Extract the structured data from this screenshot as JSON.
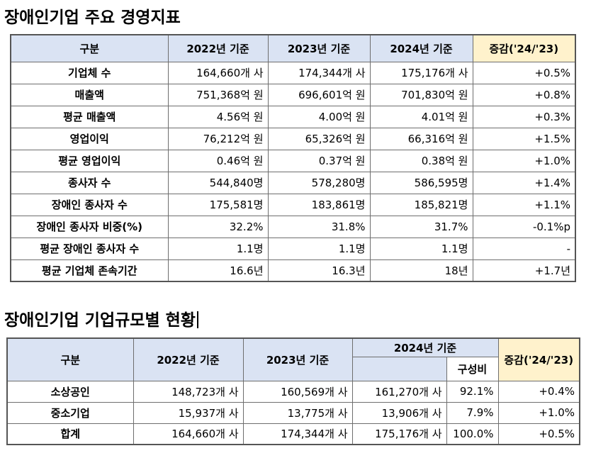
{
  "section1": {
    "title": "장애인기업 주요 경영지표",
    "headers": [
      "구분",
      "2022년 기준",
      "2023년 기준",
      "2024년 기준",
      "증감('24/'23)"
    ],
    "rows": [
      [
        "기업체 수",
        "164,660개 사",
        "174,344개 사",
        "175,176개 사",
        "+0.5%"
      ],
      [
        "매출액",
        "751,368억 원",
        "696,601억 원",
        "701,830억 원",
        "+0.8%"
      ],
      [
        "평균 매출액",
        "4.56억 원",
        "4.00억 원",
        "4.01억 원",
        "+0.3%"
      ],
      [
        "영업이익",
        "76,212억 원",
        "65,326억 원",
        "66,316억 원",
        "+1.5%"
      ],
      [
        "평균 영업이익",
        "0.46억 원",
        "0.37억 원",
        "0.38억 원",
        "+1.0%"
      ],
      [
        "종사자 수",
        "544,840명",
        "578,280명",
        "586,595명",
        "+1.4%"
      ],
      [
        "장애인 종사자 수",
        "175,581명",
        "183,861명",
        "185,821명",
        "+1.1%"
      ],
      [
        "장애인 종사자 비중(%)",
        "32.2%",
        "31.8%",
        "31.7%",
        "-0.1%p"
      ],
      [
        "평균 장애인 종사자 수",
        "1.1명",
        "1.1명",
        "1.1명",
        "-"
      ],
      [
        "평균 기업체 존속기간",
        "16.6년",
        "16.3년",
        "18년",
        "+1.7년"
      ]
    ]
  },
  "section2": {
    "title": "장애인기업 기업규모별 현황",
    "headers": {
      "category": "구분",
      "y2022": "2022년 기준",
      "y2023": "2023년 기준",
      "y2024": "2024년 기준",
      "share": "구성비",
      "change": "증감('24/'23)"
    },
    "rows": [
      [
        "소상공인",
        "148,723개 사",
        "160,569개 사",
        "161,270개 사",
        "92.1%",
        "+0.4%"
      ],
      [
        "중소기업",
        "15,937개 사",
        "13,775개 사",
        "13,906개 사",
        "7.9%",
        "+1.0%"
      ],
      [
        "합계",
        "164,660개 사",
        "174,344개 사",
        "175,176개 사",
        "100.0%",
        "+0.5%"
      ]
    ]
  }
}
